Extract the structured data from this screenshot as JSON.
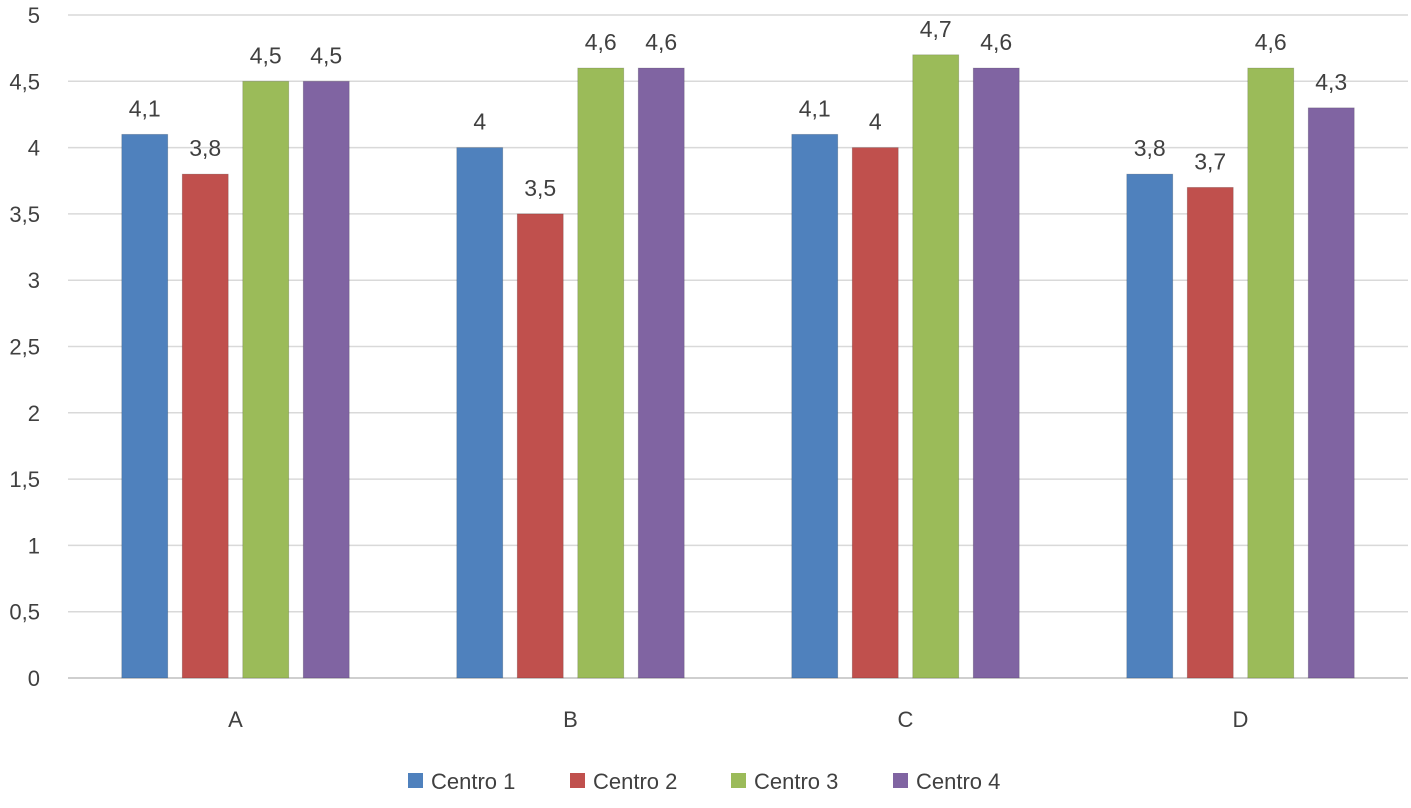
{
  "chart_data": {
    "type": "bar",
    "title": "",
    "xlabel": "",
    "ylabel": "",
    "categories": [
      "A",
      "B",
      "C",
      "D"
    ],
    "ylim": [
      0,
      5
    ],
    "yticks": [
      0,
      0.5,
      1,
      1.5,
      2,
      2.5,
      3,
      3.5,
      4,
      4.5,
      5
    ],
    "ytick_labels": [
      "0",
      "0,5",
      "1",
      "1,5",
      "2",
      "2,5",
      "3",
      "3,5",
      "4",
      "4,5",
      "5"
    ],
    "grid": true,
    "legend_position": "bottom",
    "series": [
      {
        "name": "Centro 1",
        "color": "#4f81bd",
        "values": [
          4.1,
          4.0,
          4.1,
          3.8
        ],
        "labels": [
          "4,1",
          "4",
          "4,1",
          "3,8"
        ]
      },
      {
        "name": "Centro 2",
        "color": "#c0504d",
        "values": [
          3.8,
          3.5,
          4.0,
          3.7
        ],
        "labels": [
          "3,8",
          "3,5",
          "4",
          "3,7"
        ]
      },
      {
        "name": "Centro 3",
        "color": "#9bbb59",
        "values": [
          4.5,
          4.6,
          4.7,
          4.6
        ],
        "labels": [
          "4,5",
          "4,6",
          "4,7",
          "4,6"
        ]
      },
      {
        "name": "Centro 4",
        "color": "#8064a2",
        "values": [
          4.5,
          4.6,
          4.6,
          4.3
        ],
        "labels": [
          "4,5",
          "4,6",
          "4,6",
          "4,3"
        ]
      }
    ]
  }
}
